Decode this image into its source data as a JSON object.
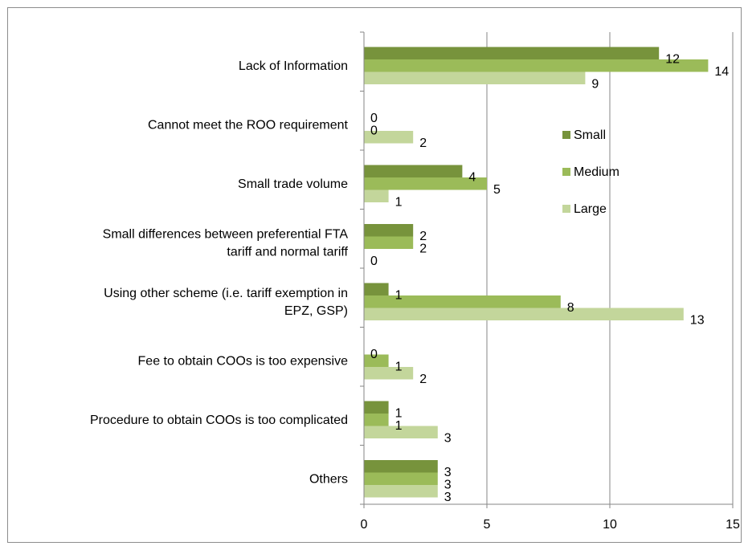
{
  "chart_data": {
    "type": "bar",
    "orientation": "horizontal",
    "categories": [
      [
        "Lack of Information"
      ],
      [
        "Cannot meet the ROO requirement"
      ],
      [
        "Small trade volume"
      ],
      [
        "Small differences between preferential FTA",
        "tariff and normal tariff"
      ],
      [
        "Using other scheme (i.e. tariff exemption in",
        "EPZ, GSP)"
      ],
      [
        "Fee to obtain COOs is too expensive"
      ],
      [
        "Procedure to obtain COOs is too complicated"
      ],
      [
        "Others"
      ]
    ],
    "series": [
      {
        "name": "Small",
        "color": "#77933c",
        "values": [
          12,
          0,
          4,
          2,
          1,
          0,
          1,
          3
        ]
      },
      {
        "name": "Medium",
        "color": "#9bbb59",
        "values": [
          14,
          0,
          5,
          2,
          8,
          1,
          1,
          3
        ]
      },
      {
        "name": "Large",
        "color": "#c3d69b",
        "values": [
          9,
          2,
          1,
          0,
          13,
          2,
          3,
          3
        ]
      }
    ],
    "xlim": [
      0,
      15
    ],
    "xticks": [
      0,
      5,
      10,
      15
    ],
    "grid": true,
    "legend": "right, inside plot"
  }
}
